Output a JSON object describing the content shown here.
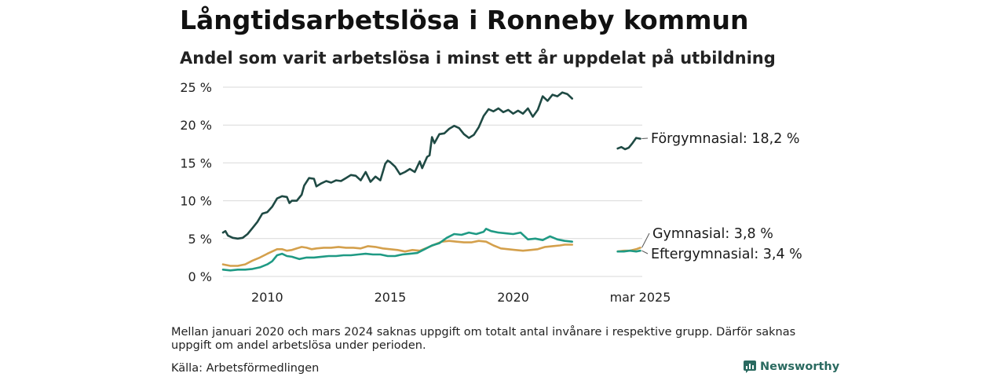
{
  "title": "Långtidsarbetslösa i Ronneby kommun",
  "subtitle": "Andel som varit arbetslösa i minst ett år uppdelat på utbildning",
  "note": "Mellan januari 2020 och mars 2024 saknas uppgift om totalt antal invånare i respektive grupp. Därför saknas uppgift om andel arbetslösa under perioden.",
  "source": "Källa: Arbetsförmedlingen",
  "brand": "Newsworthy",
  "chart_data": {
    "type": "line",
    "ylim": [
      0,
      25
    ],
    "yticks": [
      0,
      5,
      10,
      15,
      20,
      25
    ],
    "yticklabels": [
      "0 %",
      "5 %",
      "10 %",
      "15 %",
      "20 %",
      "25 %"
    ],
    "xrange": [
      2008.2,
      2025.25
    ],
    "xticks": [
      {
        "x": 2010.0,
        "label": "2010"
      },
      {
        "x": 2015.0,
        "label": "2015"
      },
      {
        "x": 2020.0,
        "label": "2020"
      },
      {
        "x": 2025.17,
        "label": "mar 2025"
      }
    ],
    "grid": true,
    "legend": "end-labels",
    "series": [
      {
        "name": "Förgymnasial",
        "end_label": "Förgymnasial: 18,2 %",
        "color": "#1f4a44",
        "segments": [
          [
            [
              2008.2,
              5.8
            ],
            [
              2008.3,
              6.0
            ],
            [
              2008.4,
              5.4
            ],
            [
              2008.6,
              5.1
            ],
            [
              2008.8,
              5.0
            ],
            [
              2009.0,
              5.1
            ],
            [
              2009.2,
              5.6
            ],
            [
              2009.4,
              6.4
            ],
            [
              2009.6,
              7.2
            ],
            [
              2009.8,
              8.3
            ],
            [
              2010.0,
              8.5
            ],
            [
              2010.2,
              9.2
            ],
            [
              2010.4,
              10.3
            ],
            [
              2010.6,
              10.6
            ],
            [
              2010.8,
              10.5
            ],
            [
              2010.9,
              9.7
            ],
            [
              2011.0,
              10.0
            ],
            [
              2011.2,
              10.0
            ],
            [
              2011.4,
              10.8
            ],
            [
              2011.5,
              12.0
            ],
            [
              2011.7,
              13.0
            ],
            [
              2011.9,
              12.9
            ],
            [
              2012.0,
              11.9
            ],
            [
              2012.2,
              12.3
            ],
            [
              2012.4,
              12.6
            ],
            [
              2012.6,
              12.4
            ],
            [
              2012.8,
              12.7
            ],
            [
              2013.0,
              12.6
            ],
            [
              2013.2,
              13.0
            ],
            [
              2013.4,
              13.4
            ],
            [
              2013.6,
              13.3
            ],
            [
              2013.8,
              12.7
            ],
            [
              2014.0,
              13.8
            ],
            [
              2014.2,
              12.5
            ],
            [
              2014.4,
              13.2
            ],
            [
              2014.6,
              12.7
            ],
            [
              2014.8,
              14.9
            ],
            [
              2014.9,
              15.3
            ],
            [
              2015.0,
              15.1
            ],
            [
              2015.2,
              14.5
            ],
            [
              2015.4,
              13.5
            ],
            [
              2015.6,
              13.8
            ],
            [
              2015.8,
              14.2
            ],
            [
              2016.0,
              13.8
            ],
            [
              2016.2,
              15.2
            ],
            [
              2016.3,
              14.3
            ],
            [
              2016.5,
              15.8
            ],
            [
              2016.6,
              16.0
            ],
            [
              2016.7,
              18.4
            ],
            [
              2016.8,
              17.6
            ],
            [
              2017.0,
              18.8
            ],
            [
              2017.2,
              18.9
            ],
            [
              2017.4,
              19.5
            ],
            [
              2017.6,
              19.9
            ],
            [
              2017.8,
              19.6
            ],
            [
              2018.0,
              18.8
            ],
            [
              2018.2,
              18.3
            ],
            [
              2018.4,
              18.7
            ],
            [
              2018.6,
              19.7
            ],
            [
              2018.8,
              21.2
            ],
            [
              2019.0,
              22.1
            ],
            [
              2019.2,
              21.8
            ],
            [
              2019.4,
              22.2
            ],
            [
              2019.6,
              21.7
            ],
            [
              2019.8,
              22.0
            ],
            [
              2020.0,
              21.5
            ],
            [
              2020.2,
              21.9
            ],
            [
              2020.4,
              21.5
            ],
            [
              2020.6,
              22.2
            ],
            [
              2020.8,
              21.1
            ],
            [
              2021.0,
              22.0
            ],
            [
              2021.2,
              23.8
            ],
            [
              2021.4,
              23.2
            ],
            [
              2021.6,
              24.0
            ],
            [
              2021.8,
              23.8
            ],
            [
              2022.0,
              24.3
            ],
            [
              2022.2,
              24.1
            ],
            [
              2022.4,
              23.5
            ]
          ],
          [
            [
              2024.25,
              16.9
            ],
            [
              2024.4,
              17.1
            ],
            [
              2024.55,
              16.8
            ],
            [
              2024.7,
              17.0
            ],
            [
              2024.85,
              17.6
            ],
            [
              2025.0,
              18.3
            ],
            [
              2025.17,
              18.2
            ]
          ]
        ]
      },
      {
        "name": "Gymnasial",
        "end_label": "Gymnasial:  3,8 %",
        "color": "#d4a04c",
        "segments": [
          [
            [
              2008.2,
              1.6
            ],
            [
              2008.5,
              1.4
            ],
            [
              2008.8,
              1.4
            ],
            [
              2009.1,
              1.6
            ],
            [
              2009.4,
              2.1
            ],
            [
              2009.7,
              2.5
            ],
            [
              2010.0,
              3.0
            ],
            [
              2010.2,
              3.3
            ],
            [
              2010.4,
              3.6
            ],
            [
              2010.6,
              3.6
            ],
            [
              2010.8,
              3.4
            ],
            [
              2011.0,
              3.5
            ],
            [
              2011.2,
              3.7
            ],
            [
              2011.4,
              3.9
            ],
            [
              2011.6,
              3.8
            ],
            [
              2011.8,
              3.6
            ],
            [
              2012.0,
              3.7
            ],
            [
              2012.3,
              3.8
            ],
            [
              2012.6,
              3.8
            ],
            [
              2012.9,
              3.9
            ],
            [
              2013.2,
              3.8
            ],
            [
              2013.5,
              3.8
            ],
            [
              2013.8,
              3.7
            ],
            [
              2014.1,
              4.0
            ],
            [
              2014.4,
              3.9
            ],
            [
              2014.7,
              3.7
            ],
            [
              2015.0,
              3.6
            ],
            [
              2015.3,
              3.5
            ],
            [
              2015.6,
              3.3
            ],
            [
              2015.9,
              3.5
            ],
            [
              2016.2,
              3.4
            ],
            [
              2016.5,
              3.8
            ],
            [
              2016.8,
              4.2
            ],
            [
              2017.1,
              4.6
            ],
            [
              2017.4,
              4.7
            ],
            [
              2017.7,
              4.6
            ],
            [
              2018.0,
              4.5
            ],
            [
              2018.3,
              4.5
            ],
            [
              2018.6,
              4.7
            ],
            [
              2018.9,
              4.6
            ],
            [
              2019.2,
              4.1
            ],
            [
              2019.5,
              3.7
            ],
            [
              2019.8,
              3.6
            ],
            [
              2020.1,
              3.5
            ],
            [
              2020.4,
              3.4
            ],
            [
              2020.7,
              3.5
            ],
            [
              2021.0,
              3.6
            ],
            [
              2021.3,
              3.9
            ],
            [
              2021.6,
              4.0
            ],
            [
              2021.9,
              4.1
            ],
            [
              2022.1,
              4.2
            ],
            [
              2022.4,
              4.2
            ]
          ],
          [
            [
              2024.25,
              3.3
            ],
            [
              2024.5,
              3.4
            ],
            [
              2024.75,
              3.4
            ],
            [
              2025.0,
              3.6
            ],
            [
              2025.17,
              3.8
            ]
          ]
        ]
      },
      {
        "name": "Eftergymnasial",
        "end_label": "Eftergymnasial:  3,4 %",
        "color": "#1f9a84",
        "segments": [
          [
            [
              2008.2,
              0.9
            ],
            [
              2008.5,
              0.8
            ],
            [
              2008.8,
              0.9
            ],
            [
              2009.1,
              0.9
            ],
            [
              2009.4,
              1.0
            ],
            [
              2009.7,
              1.2
            ],
            [
              2010.0,
              1.6
            ],
            [
              2010.2,
              2.0
            ],
            [
              2010.4,
              2.8
            ],
            [
              2010.6,
              3.0
            ],
            [
              2010.8,
              2.7
            ],
            [
              2011.0,
              2.6
            ],
            [
              2011.3,
              2.3
            ],
            [
              2011.6,
              2.5
            ],
            [
              2011.9,
              2.5
            ],
            [
              2012.2,
              2.6
            ],
            [
              2012.5,
              2.7
            ],
            [
              2012.8,
              2.7
            ],
            [
              2013.1,
              2.8
            ],
            [
              2013.4,
              2.8
            ],
            [
              2013.7,
              2.9
            ],
            [
              2014.0,
              3.0
            ],
            [
              2014.3,
              2.9
            ],
            [
              2014.6,
              2.9
            ],
            [
              2014.9,
              2.7
            ],
            [
              2015.2,
              2.7
            ],
            [
              2015.5,
              2.9
            ],
            [
              2015.8,
              3.0
            ],
            [
              2016.1,
              3.1
            ],
            [
              2016.4,
              3.6
            ],
            [
              2016.7,
              4.1
            ],
            [
              2017.0,
              4.4
            ],
            [
              2017.3,
              5.1
            ],
            [
              2017.6,
              5.6
            ],
            [
              2017.9,
              5.5
            ],
            [
              2018.2,
              5.8
            ],
            [
              2018.5,
              5.6
            ],
            [
              2018.8,
              5.9
            ],
            [
              2018.9,
              6.3
            ],
            [
              2019.1,
              6.0
            ],
            [
              2019.4,
              5.8
            ],
            [
              2019.7,
              5.7
            ],
            [
              2020.0,
              5.6
            ],
            [
              2020.3,
              5.8
            ],
            [
              2020.6,
              4.9
            ],
            [
              2020.9,
              5.0
            ],
            [
              2021.2,
              4.8
            ],
            [
              2021.5,
              5.3
            ],
            [
              2021.8,
              4.9
            ],
            [
              2022.1,
              4.7
            ],
            [
              2022.4,
              4.6
            ]
          ],
          [
            [
              2024.25,
              3.3
            ],
            [
              2024.5,
              3.3
            ],
            [
              2024.75,
              3.4
            ],
            [
              2025.0,
              3.3
            ],
            [
              2025.17,
              3.4
            ]
          ]
        ]
      }
    ]
  }
}
